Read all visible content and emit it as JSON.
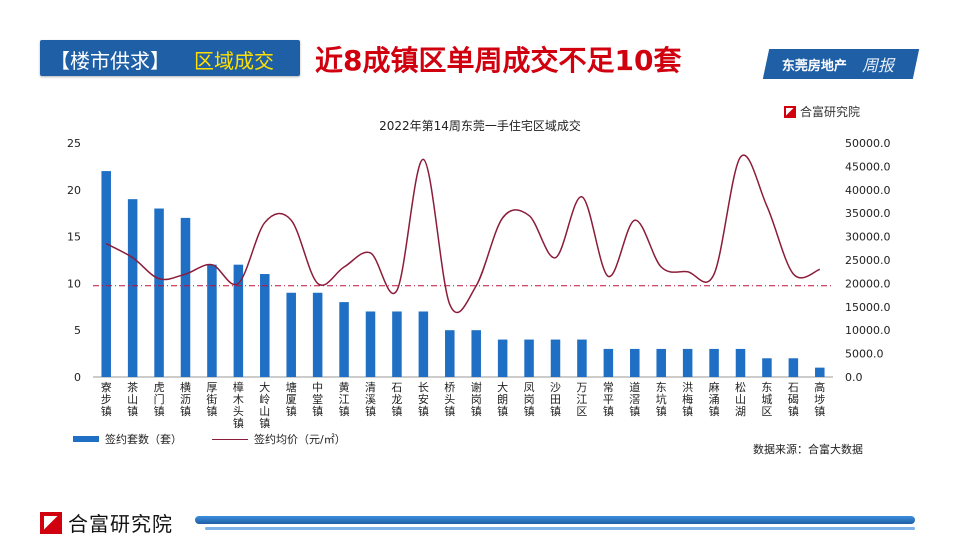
{
  "header": {
    "tag": "【楼市供求】",
    "section": "区域成交",
    "headline": "近8成镇区单周成交不足10套"
  },
  "brand": {
    "name": "东莞房地产",
    "script": "周报",
    "logo_text": "合富研究院"
  },
  "source": "数据来源：合富大数据",
  "colors": {
    "bar": "#1f6fc5",
    "line": "#8b1c3a",
    "refline": "#c0103a",
    "accent_blue": "#1f5fa5",
    "headline_red": "#d0000f"
  },
  "chart_data": {
    "type": "bar",
    "title": "2022年第14周东莞一手住宅区域成交",
    "categories": [
      "寮步镇",
      "茶山镇",
      "虎门镇",
      "横沥镇",
      "厚街镇",
      "樟木头镇",
      "大岭山镇",
      "塘厦镇",
      "中堂镇",
      "黄江镇",
      "清溪镇",
      "石龙镇",
      "长安镇",
      "桥头镇",
      "谢岗镇",
      "大朗镇",
      "凤岗镇",
      "沙田镇",
      "万江区",
      "常平镇",
      "道滘镇",
      "东坑镇",
      "洪梅镇",
      "麻涌镇",
      "松山湖",
      "东城区",
      "石碣镇",
      "高埗镇"
    ],
    "series": [
      {
        "name": "签约套数（套）",
        "type": "bar",
        "axis": "left",
        "values": [
          22,
          19,
          18,
          17,
          12,
          12,
          11,
          9,
          9,
          8,
          7,
          7,
          7,
          5,
          5,
          4,
          4,
          4,
          4,
          3,
          3,
          3,
          3,
          3,
          3,
          2,
          2,
          1
        ]
      },
      {
        "name": "签约均价（元/㎡）",
        "type": "line",
        "axis": "right",
        "values": [
          28500,
          25500,
          21000,
          22000,
          24000,
          20000,
          33000,
          33500,
          20000,
          23500,
          26500,
          18500,
          46500,
          15500,
          19500,
          34000,
          34500,
          25500,
          38500,
          21500,
          33500,
          23500,
          22500,
          22000,
          47000,
          36500,
          22000,
          23000
        ]
      }
    ],
    "y_left": {
      "min": 0,
      "max": 25,
      "ticks": [
        "0",
        "5",
        "10",
        "15",
        "20",
        "25"
      ]
    },
    "y_right": {
      "min": 0,
      "max": 50000,
      "ticks": [
        "0.0",
        "5000.0",
        "10000.0",
        "15000.0",
        "20000.0",
        "25000.0",
        "30000.0",
        "35000.0",
        "40000.0",
        "45000.0",
        "50000.0"
      ]
    },
    "reference_line": {
      "axis": "right",
      "value": 19500
    },
    "legend_position": "bottom-left",
    "grid": false
  }
}
